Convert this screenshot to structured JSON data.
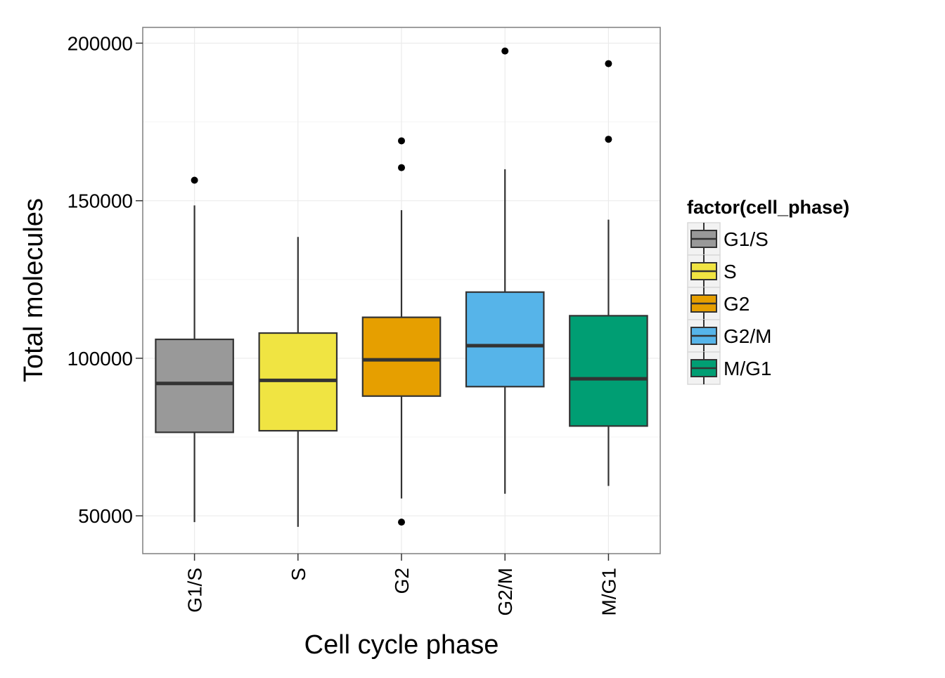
{
  "chart_data": {
    "type": "box",
    "title": "",
    "xlabel": "Cell cycle phase",
    "ylabel": "Total molecules",
    "ylim": [
      38000,
      205000
    ],
    "y_ticks": [
      50000,
      100000,
      150000,
      200000
    ],
    "y_tick_labels": [
      "50000",
      "100000",
      "150000",
      "200000"
    ],
    "grid": true,
    "legend": {
      "title": "factor(cell_phase)",
      "position": "right",
      "entries": [
        "G1/S",
        "S",
        "G2",
        "G2/M",
        "M/G1"
      ]
    },
    "categories": [
      "G1/S",
      "S",
      "G2",
      "G2/M",
      "M/G1"
    ],
    "colors": [
      "#999999",
      "#F0E442",
      "#E69F00",
      "#56B4E9",
      "#009E73"
    ],
    "boxes": [
      {
        "category": "G1/S",
        "whisker_low": 48000,
        "q1": 76500,
        "median": 92000,
        "q3": 106000,
        "whisker_high": 148500,
        "outliers": [
          156500
        ]
      },
      {
        "category": "S",
        "whisker_low": 46500,
        "q1": 77000,
        "median": 93000,
        "q3": 108000,
        "whisker_high": 138500,
        "outliers": []
      },
      {
        "category": "G2",
        "whisker_low": 55500,
        "q1": 88000,
        "median": 99500,
        "q3": 113000,
        "whisker_high": 147000,
        "outliers": [
          48000,
          160500,
          169000
        ]
      },
      {
        "category": "G2/M",
        "whisker_low": 57000,
        "q1": 91000,
        "median": 104000,
        "q3": 121000,
        "whisker_high": 160000,
        "outliers": [
          197500
        ]
      },
      {
        "category": "M/G1",
        "whisker_low": 59500,
        "q1": 78500,
        "median": 93500,
        "q3": 113500,
        "whisker_high": 144000,
        "outliers": [
          169500,
          193500
        ]
      }
    ]
  }
}
